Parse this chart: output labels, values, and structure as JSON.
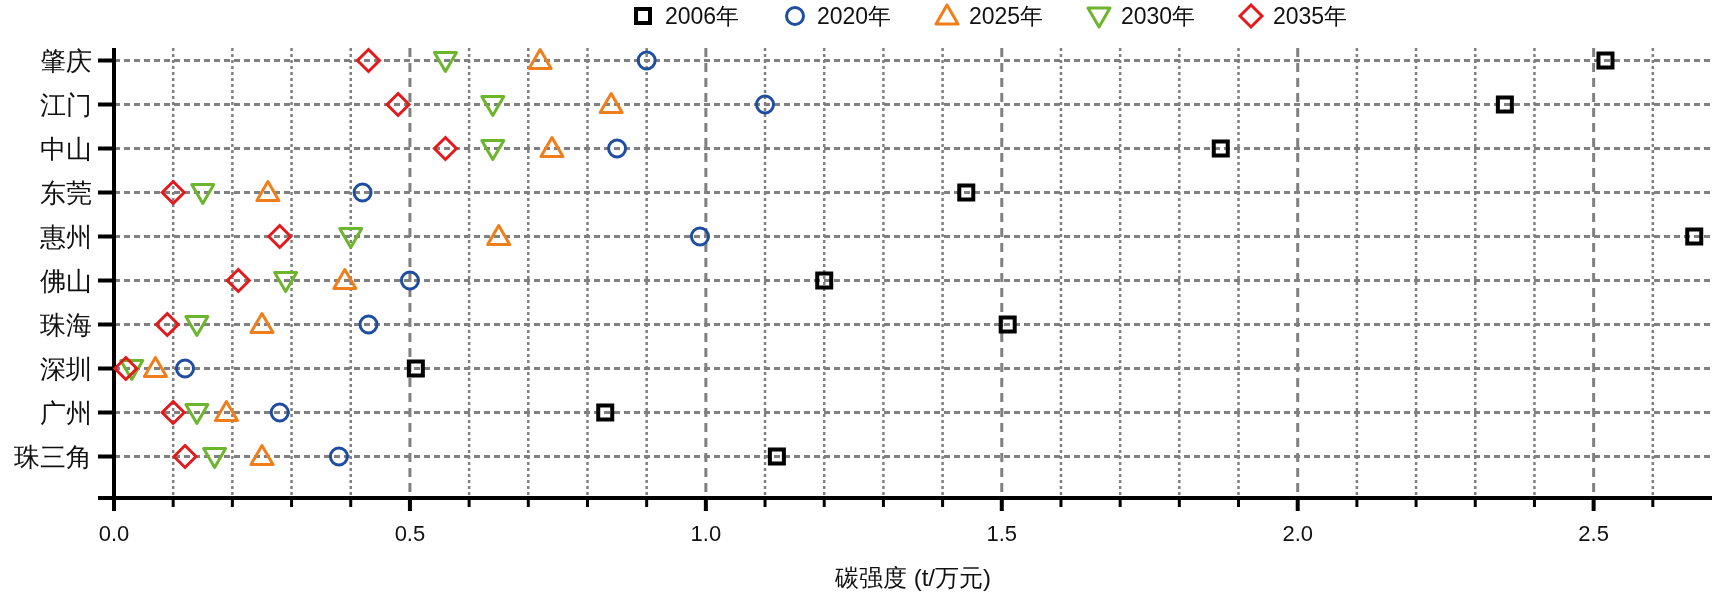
{
  "chart_data": {
    "type": "scatter",
    "xlabel": "碳强度 (t/万元)",
    "orientation": "horizontal",
    "categories": [
      "肇庆",
      "江门",
      "中山",
      "东莞",
      "惠州",
      "佛山",
      "珠海",
      "深圳",
      "广州",
      "珠三角"
    ],
    "xlim": [
      0,
      2.7
    ],
    "xticks": [
      {
        "value": 0,
        "label": "0.0"
      },
      {
        "value": 0.1,
        "label": null
      },
      {
        "value": 0.2,
        "label": null
      },
      {
        "value": 0.3,
        "label": null
      },
      {
        "value": 0.4,
        "label": null
      },
      0.5,
      {
        "value": 0.6,
        "label": null
      },
      {
        "value": 0.7,
        "label": null
      },
      {
        "value": 0.8,
        "label": null
      },
      {
        "value": 0.9,
        "label": null
      },
      {
        "value": 1,
        "label": "1.0"
      },
      {
        "value": 1.1,
        "label": null
      },
      {
        "value": 1.2,
        "label": null
      },
      {
        "value": 1.3,
        "label": null
      },
      {
        "value": 1.4,
        "label": null
      },
      1.5,
      {
        "value": 1.6,
        "label": null
      },
      {
        "value": 1.7,
        "label": null
      },
      {
        "value": 1.8,
        "label": null
      },
      {
        "value": 1.9,
        "label": null
      },
      {
        "value": 2,
        "label": "2.0"
      },
      {
        "value": 2.1,
        "label": null
      },
      {
        "value": 2.2,
        "label": null
      },
      {
        "value": 2.3,
        "label": null
      },
      {
        "value": 2.4,
        "label": null
      },
      2.5,
      {
        "value": 2.6,
        "label": null
      }
    ],
    "grid": true,
    "legend": "top",
    "series": [
      {
        "name": "2006年",
        "color": "#000000",
        "marker": "square",
        "values": [
          2.52,
          2.35,
          1.87,
          1.44,
          2.67,
          1.2,
          1.51,
          0.51,
          0.83,
          1.12
        ]
      },
      {
        "name": "2020年",
        "color": "#1f4ea1",
        "marker": "circle",
        "values": [
          0.9,
          1.1,
          0.85,
          0.42,
          0.99,
          0.5,
          0.43,
          0.12,
          0.28,
          0.38
        ]
      },
      {
        "name": "2025年",
        "color": "#f07f1b",
        "marker": "triangle",
        "values": [
          0.72,
          0.84,
          0.74,
          0.26,
          0.65,
          0.39,
          0.25,
          0.07,
          0.19,
          0.25
        ]
      },
      {
        "name": "2030年",
        "color": "#6cb52d",
        "marker": "triangle-down",
        "values": [
          0.56,
          0.64,
          0.64,
          0.15,
          0.4,
          0.29,
          0.14,
          0.03,
          0.14,
          0.17
        ]
      },
      {
        "name": "2035年",
        "color": "#e31a1c",
        "marker": "diamond",
        "values": [
          0.43,
          0.48,
          0.56,
          0.1,
          0.28,
          0.21,
          0.09,
          0.02,
          0.1,
          0.12
        ]
      }
    ]
  }
}
